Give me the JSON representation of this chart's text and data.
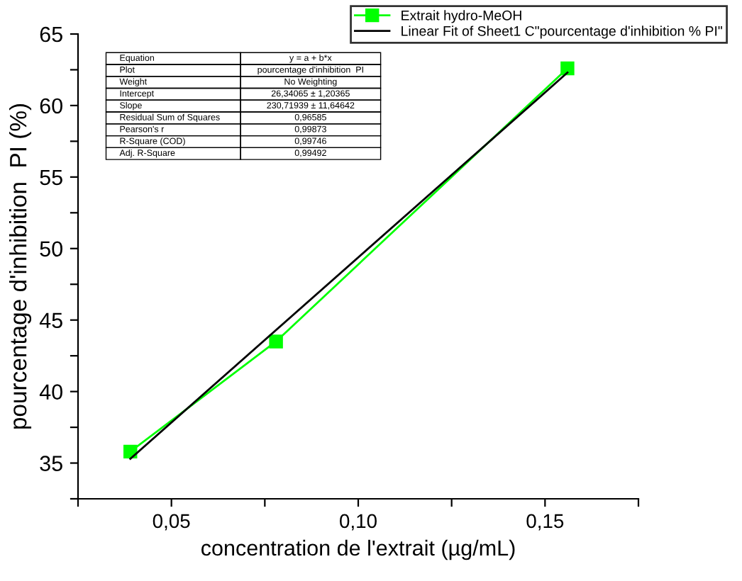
{
  "chart_data": {
    "type": "line",
    "xlabel": "concentration de l'extrait (µg/mL)",
    "ylabel": "pourcentage d'inhibition  PI (%)",
    "series": [
      {
        "name": "Extrait hydro-MeOH",
        "color": "#00ff00",
        "marker": "square",
        "x": [
          0.039,
          0.078,
          0.156
        ],
        "values": [
          35.8,
          43.5,
          62.6
        ]
      },
      {
        "name": "Linear Fit of Sheet1 C\"pourcentage d'inhibition % PI\"",
        "color": "#000000",
        "marker": "none",
        "x": [
          0.039,
          0.156
        ],
        "values": [
          35.3,
          62.3
        ]
      }
    ],
    "xlim": [
      0.025,
      0.175
    ],
    "xticks": [
      {
        "value": 0.025,
        "label": null
      },
      {
        "value": 0.05,
        "label": "0,05"
      },
      {
        "value": 0.075,
        "label": null
      },
      {
        "value": 0.1,
        "label": "0,10"
      },
      {
        "value": 0.125,
        "label": null
      },
      {
        "value": 0.15,
        "label": "0,15"
      },
      {
        "value": 0.175,
        "label": null
      }
    ],
    "ylim": [
      32.5,
      65
    ],
    "yticks": [
      {
        "value": 32.5,
        "label": null
      },
      35,
      {
        "value": 37.5,
        "label": null
      },
      40,
      {
        "value": 42.5,
        "label": null
      },
      45,
      {
        "value": 47.5,
        "label": null
      },
      50,
      {
        "value": 52.5,
        "label": null
      },
      55,
      {
        "value": 57.5,
        "label": null
      },
      60,
      {
        "value": 62.5,
        "label": null
      },
      65
    ],
    "annotations": [
      "Equation",
      "y = a + b*x",
      "Plot",
      "pourcentage d'inhibition  PI",
      "Weight",
      "No Weighting",
      "Intercept",
      "26,34065 ± 1,20365",
      "Slope",
      "230,71939 ± 11,64642",
      "Residual Sum of Squares",
      "0,96585",
      "Pearson's r",
      "0,99873",
      "R-Square (COD)",
      "0,99746",
      "Adj. R-Square",
      "0,99492"
    ],
    "legend": "top right",
    "grid": false,
    "line_style": "solid"
  }
}
